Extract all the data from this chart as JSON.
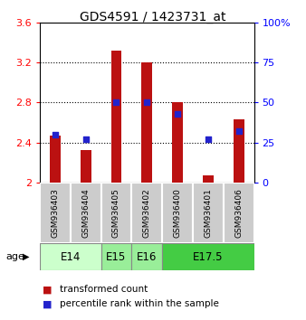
{
  "title": "GDS4591 / 1423731_at",
  "samples": [
    "GSM936403",
    "GSM936404",
    "GSM936405",
    "GSM936402",
    "GSM936400",
    "GSM936401",
    "GSM936406"
  ],
  "transformed_counts": [
    2.47,
    2.32,
    3.32,
    3.2,
    2.8,
    2.07,
    2.63
  ],
  "percentile_ranks": [
    30,
    27,
    50,
    50,
    43,
    27,
    32
  ],
  "ylim_left": [
    2.0,
    3.6
  ],
  "ylim_right": [
    0,
    100
  ],
  "yticks_left": [
    2.0,
    2.4,
    2.8,
    3.2,
    3.6
  ],
  "yticks_right": [
    0,
    25,
    50,
    75,
    100
  ],
  "bar_color": "#BB1111",
  "dot_color": "#2222CC",
  "bar_bottom": 2.0,
  "age_groups": [
    {
      "label": "E14",
      "indices": [
        0,
        1
      ],
      "color": "#ccffcc"
    },
    {
      "label": "E15",
      "indices": [
        2
      ],
      "color": "#99ee99"
    },
    {
      "label": "E16",
      "indices": [
        3
      ],
      "color": "#99ee99"
    },
    {
      "label": "E17.5",
      "indices": [
        4,
        5,
        6
      ],
      "color": "#44cc44"
    }
  ],
  "sample_bg_color": "#cccccc",
  "legend_red_label": "transformed count",
  "legend_blue_label": "percentile rank within the sample"
}
